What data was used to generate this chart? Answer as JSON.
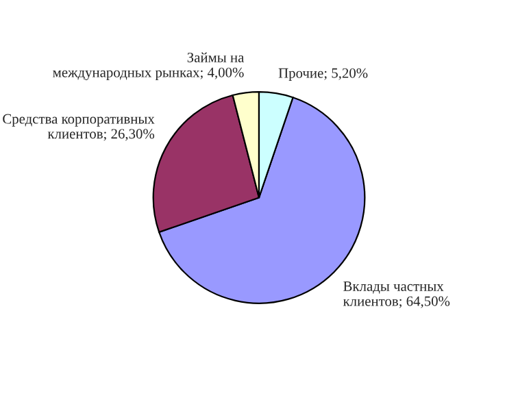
{
  "chart_data": {
    "type": "pie",
    "categories": [
      "Вклады частных клиентов",
      "Средства корпоративных клиентов",
      "Займы на международных рынках",
      "Прочие"
    ],
    "values": [
      64.5,
      26.3,
      4.0,
      5.2
    ],
    "value_labels": [
      "64,50%",
      "26,30%",
      "4,00%",
      "5,20%"
    ],
    "colors": [
      "#9999ff",
      "#993366",
      "#ffffcc",
      "#ccffff"
    ],
    "legend": false
  }
}
